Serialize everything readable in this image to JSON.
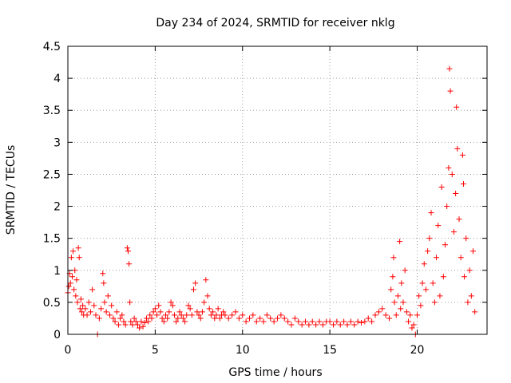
{
  "chart_data": {
    "type": "scatter",
    "title": "Day 234 of 2024, SRMTID for receiver nklg",
    "xlabel": "GPS time / hours",
    "ylabel": "SRMTID / TECUs",
    "xlim": [
      0,
      24
    ],
    "ylim": [
      0,
      4.5
    ],
    "x_ticks": [
      0,
      5,
      10,
      15,
      20
    ],
    "x_tick_labels": [
      "0",
      "5",
      "10",
      "15",
      "20"
    ],
    "y_ticks": [
      0,
      0.5,
      1,
      1.5,
      2,
      2.5,
      3,
      3.5,
      4,
      4.5
    ],
    "y_tick_labels": [
      "0",
      "0.5",
      "1",
      "1.5",
      "2",
      "2.5",
      "3",
      "3.5",
      "4",
      "4.5"
    ],
    "grid": true,
    "marker": "+",
    "series": [
      {
        "name": "SRMTID",
        "color": "#ff0000",
        "points": [
          [
            0.0,
            0.65
          ],
          [
            0.05,
            0.75
          ],
          [
            0.1,
            0.95
          ],
          [
            0.15,
            0.8
          ],
          [
            0.2,
            1.2
          ],
          [
            0.25,
            0.9
          ],
          [
            0.3,
            1.3
          ],
          [
            0.35,
            0.7
          ],
          [
            0.4,
            1.0
          ],
          [
            0.45,
            0.6
          ],
          [
            0.5,
            0.85
          ],
          [
            0.55,
            0.5
          ],
          [
            0.6,
            1.35
          ],
          [
            0.65,
            1.2
          ],
          [
            0.7,
            0.4
          ],
          [
            0.75,
            0.55
          ],
          [
            0.8,
            0.35
          ],
          [
            0.85,
            0.45
          ],
          [
            0.9,
            0.3
          ],
          [
            1.0,
            0.4
          ],
          [
            1.1,
            0.3
          ],
          [
            1.2,
            0.5
          ],
          [
            1.3,
            0.35
          ],
          [
            1.4,
            0.7
          ],
          [
            1.5,
            0.45
          ],
          [
            1.6,
            0.3
          ],
          [
            1.7,
            0.0
          ],
          [
            1.8,
            0.25
          ],
          [
            1.9,
            0.4
          ],
          [
            2.0,
            0.95
          ],
          [
            2.05,
            0.8
          ],
          [
            2.1,
            0.5
          ],
          [
            2.2,
            0.35
          ],
          [
            2.3,
            0.6
          ],
          [
            2.4,
            0.3
          ],
          [
            2.5,
            0.45
          ],
          [
            2.6,
            0.25
          ],
          [
            2.7,
            0.2
          ],
          [
            2.8,
            0.35
          ],
          [
            2.9,
            0.15
          ],
          [
            3.0,
            0.25
          ],
          [
            3.1,
            0.3
          ],
          [
            3.2,
            0.2
          ],
          [
            3.3,
            0.15
          ],
          [
            3.4,
            1.35
          ],
          [
            3.45,
            1.3
          ],
          [
            3.5,
            1.1
          ],
          [
            3.55,
            0.5
          ],
          [
            3.6,
            0.2
          ],
          [
            3.7,
            0.15
          ],
          [
            3.8,
            0.25
          ],
          [
            3.9,
            0.2
          ],
          [
            4.0,
            0.15
          ],
          [
            4.1,
            0.1
          ],
          [
            4.2,
            0.2
          ],
          [
            4.3,
            0.12
          ],
          [
            4.4,
            0.18
          ],
          [
            4.5,
            0.25
          ],
          [
            4.6,
            0.2
          ],
          [
            4.7,
            0.3
          ],
          [
            4.8,
            0.25
          ],
          [
            4.9,
            0.35
          ],
          [
            5.0,
            0.4
          ],
          [
            5.1,
            0.3
          ],
          [
            5.2,
            0.45
          ],
          [
            5.3,
            0.35
          ],
          [
            5.4,
            0.25
          ],
          [
            5.5,
            0.2
          ],
          [
            5.6,
            0.3
          ],
          [
            5.7,
            0.25
          ],
          [
            5.8,
            0.35
          ],
          [
            5.9,
            0.5
          ],
          [
            6.0,
            0.45
          ],
          [
            6.1,
            0.3
          ],
          [
            6.2,
            0.2
          ],
          [
            6.3,
            0.25
          ],
          [
            6.4,
            0.35
          ],
          [
            6.5,
            0.3
          ],
          [
            6.6,
            0.25
          ],
          [
            6.7,
            0.2
          ],
          [
            6.8,
            0.3
          ],
          [
            6.9,
            0.45
          ],
          [
            7.0,
            0.4
          ],
          [
            7.1,
            0.3
          ],
          [
            7.2,
            0.7
          ],
          [
            7.3,
            0.8
          ],
          [
            7.4,
            0.35
          ],
          [
            7.5,
            0.3
          ],
          [
            7.6,
            0.25
          ],
          [
            7.7,
            0.35
          ],
          [
            7.8,
            0.5
          ],
          [
            7.9,
            0.85
          ],
          [
            8.0,
            0.6
          ],
          [
            8.1,
            0.4
          ],
          [
            8.2,
            0.3
          ],
          [
            8.3,
            0.35
          ],
          [
            8.4,
            0.25
          ],
          [
            8.5,
            0.3
          ],
          [
            8.6,
            0.4
          ],
          [
            8.7,
            0.25
          ],
          [
            8.8,
            0.3
          ],
          [
            8.9,
            0.35
          ],
          [
            9.0,
            0.3
          ],
          [
            9.2,
            0.25
          ],
          [
            9.4,
            0.3
          ],
          [
            9.6,
            0.35
          ],
          [
            9.8,
            0.25
          ],
          [
            10.0,
            0.3
          ],
          [
            10.2,
            0.2
          ],
          [
            10.4,
            0.25
          ],
          [
            10.6,
            0.3
          ],
          [
            10.8,
            0.2
          ],
          [
            11.0,
            0.25
          ],
          [
            11.2,
            0.2
          ],
          [
            11.4,
            0.3
          ],
          [
            11.6,
            0.25
          ],
          [
            11.8,
            0.2
          ],
          [
            12.0,
            0.25
          ],
          [
            12.2,
            0.3
          ],
          [
            12.4,
            0.25
          ],
          [
            12.6,
            0.2
          ],
          [
            12.8,
            0.15
          ],
          [
            13.0,
            0.25
          ],
          [
            13.2,
            0.2
          ],
          [
            13.4,
            0.15
          ],
          [
            13.6,
            0.2
          ],
          [
            13.8,
            0.15
          ],
          [
            14.0,
            0.2
          ],
          [
            14.2,
            0.15
          ],
          [
            14.4,
            0.2
          ],
          [
            14.6,
            0.15
          ],
          [
            14.8,
            0.2
          ],
          [
            15.0,
            0.2
          ],
          [
            15.2,
            0.15
          ],
          [
            15.4,
            0.2
          ],
          [
            15.6,
            0.15
          ],
          [
            15.8,
            0.2
          ],
          [
            16.0,
            0.15
          ],
          [
            16.2,
            0.2
          ],
          [
            16.4,
            0.15
          ],
          [
            16.6,
            0.2
          ],
          [
            16.8,
            0.18
          ],
          [
            17.0,
            0.2
          ],
          [
            17.2,
            0.25
          ],
          [
            17.4,
            0.2
          ],
          [
            17.6,
            0.3
          ],
          [
            17.8,
            0.35
          ],
          [
            18.0,
            0.4
          ],
          [
            18.2,
            0.3
          ],
          [
            18.4,
            0.25
          ],
          [
            18.5,
            0.7
          ],
          [
            18.6,
            0.9
          ],
          [
            18.65,
            1.2
          ],
          [
            18.7,
            0.5
          ],
          [
            18.8,
            0.3
          ],
          [
            18.9,
            0.6
          ],
          [
            19.0,
            1.45
          ],
          [
            19.05,
            0.4
          ],
          [
            19.1,
            0.8
          ],
          [
            19.2,
            0.5
          ],
          [
            19.3,
            1.0
          ],
          [
            19.4,
            0.35
          ],
          [
            19.5,
            0.2
          ],
          [
            19.6,
            0.3
          ],
          [
            19.7,
            0.1
          ],
          [
            19.8,
            0.15
          ],
          [
            19.9,
            0.0
          ],
          [
            20.0,
            0.3
          ],
          [
            20.1,
            0.6
          ],
          [
            20.2,
            0.45
          ],
          [
            20.3,
            0.8
          ],
          [
            20.4,
            1.1
          ],
          [
            20.5,
            0.7
          ],
          [
            20.6,
            1.3
          ],
          [
            20.7,
            1.5
          ],
          [
            20.8,
            1.9
          ],
          [
            20.9,
            0.8
          ],
          [
            21.0,
            0.5
          ],
          [
            21.1,
            1.2
          ],
          [
            21.2,
            1.7
          ],
          [
            21.3,
            0.6
          ],
          [
            21.4,
            2.3
          ],
          [
            21.5,
            0.9
          ],
          [
            21.6,
            1.4
          ],
          [
            21.7,
            2.0
          ],
          [
            21.8,
            2.6
          ],
          [
            21.85,
            4.15
          ],
          [
            21.9,
            3.8
          ],
          [
            22.0,
            2.5
          ],
          [
            22.1,
            1.6
          ],
          [
            22.2,
            2.2
          ],
          [
            22.25,
            3.55
          ],
          [
            22.3,
            2.9
          ],
          [
            22.4,
            1.8
          ],
          [
            22.5,
            1.2
          ],
          [
            22.6,
            2.8
          ],
          [
            22.65,
            2.35
          ],
          [
            22.7,
            0.9
          ],
          [
            22.8,
            1.5
          ],
          [
            22.9,
            0.5
          ],
          [
            23.0,
            1.0
          ],
          [
            23.1,
            0.6
          ],
          [
            23.2,
            1.3
          ],
          [
            23.3,
            0.35
          ]
        ]
      }
    ]
  }
}
